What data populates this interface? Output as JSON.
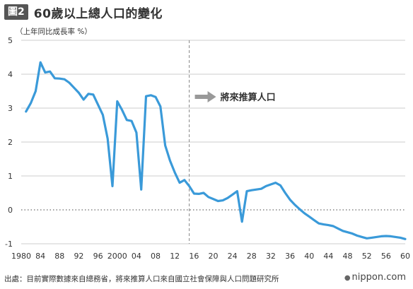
{
  "header": {
    "badge": "圖2",
    "title": "60歲以上總人口的變化"
  },
  "footer": {
    "source": "出處：目前實際數據來自總務省，將來推算人口來自國立社會保障與人口問題研究所",
    "logo": "nippon.com"
  },
  "chart_data": {
    "type": "line",
    "ylabel": "（上年同比成長率 %）",
    "xlabel": "",
    "ylim": [
      -1,
      5
    ],
    "yticks": [
      -1,
      0,
      1,
      2,
      3,
      4,
      5
    ],
    "xlim": [
      1980,
      2060
    ],
    "xticks": [
      {
        "value": 1980,
        "label": "1980"
      },
      {
        "value": 1984,
        "label": "84"
      },
      {
        "value": 1988,
        "label": "88"
      },
      {
        "value": 1992,
        "label": "92"
      },
      {
        "value": 1996,
        "label": "96"
      },
      {
        "value": 2000,
        "label": "2000"
      },
      {
        "value": 2004,
        "label": "04"
      },
      {
        "value": 2008,
        "label": "08"
      },
      {
        "value": 2012,
        "label": "12"
      },
      {
        "value": 2016,
        "label": "16"
      },
      {
        "value": 2020,
        "label": "20"
      },
      {
        "value": 2024,
        "label": "24"
      },
      {
        "value": 2028,
        "label": "28"
      },
      {
        "value": 2032,
        "label": "32"
      },
      {
        "value": 2036,
        "label": "36"
      },
      {
        "value": 2040,
        "label": "40"
      },
      {
        "value": 2044,
        "label": "44"
      },
      {
        "value": 2048,
        "label": "48"
      },
      {
        "value": 2052,
        "label": "52"
      },
      {
        "value": 2056,
        "label": "56"
      },
      {
        "value": 2060,
        "label": "60"
      }
    ],
    "divider_x": 2015,
    "annotation": "將來推算人口",
    "line_color": "#3a9ad9",
    "series": [
      {
        "x": [
          1981,
          1982,
          1983,
          1984,
          1985,
          1986,
          1987,
          1988,
          1989,
          1990,
          1991,
          1992,
          1993,
          1994,
          1995,
          1996,
          1997,
          1998,
          1999,
          2000,
          2001,
          2002,
          2003,
          2004,
          2005,
          2006,
          2007,
          2008,
          2009,
          2010,
          2011,
          2012,
          2013,
          2014,
          2015,
          2016,
          2017,
          2018,
          2019,
          2020,
          2021,
          2022,
          2023,
          2024,
          2025,
          2026,
          2027,
          2028,
          2029,
          2030,
          2031,
          2032,
          2033,
          2034,
          2035,
          2036,
          2037,
          2038,
          2039,
          2040,
          2041,
          2042,
          2043,
          2044,
          2045,
          2046,
          2047,
          2048,
          2049,
          2050,
          2051,
          2052,
          2053,
          2054,
          2055,
          2056,
          2057,
          2058,
          2059,
          2060
        ],
        "values": [
          2.9,
          3.15,
          3.5,
          4.35,
          4.05,
          4.08,
          3.88,
          3.87,
          3.85,
          3.75,
          3.6,
          3.45,
          3.25,
          3.42,
          3.4,
          3.1,
          2.8,
          2.1,
          0.7,
          3.2,
          2.95,
          2.65,
          2.62,
          2.28,
          0.6,
          3.35,
          3.38,
          3.33,
          3.05,
          1.9,
          1.45,
          1.1,
          0.8,
          0.88,
          0.7,
          0.48,
          0.47,
          0.5,
          0.38,
          0.32,
          0.26,
          0.28,
          0.35,
          0.45,
          0.55,
          -0.35,
          0.55,
          0.58,
          0.6,
          0.62,
          0.7,
          0.75,
          0.8,
          0.72,
          0.5,
          0.3,
          0.15,
          0.02,
          -0.1,
          -0.2,
          -0.3,
          -0.4,
          -0.43,
          -0.45,
          -0.48,
          -0.55,
          -0.62,
          -0.66,
          -0.7,
          -0.76,
          -0.8,
          -0.84,
          -0.82,
          -0.8,
          -0.78,
          -0.77,
          -0.78,
          -0.8,
          -0.82,
          -0.86
        ]
      }
    ]
  }
}
